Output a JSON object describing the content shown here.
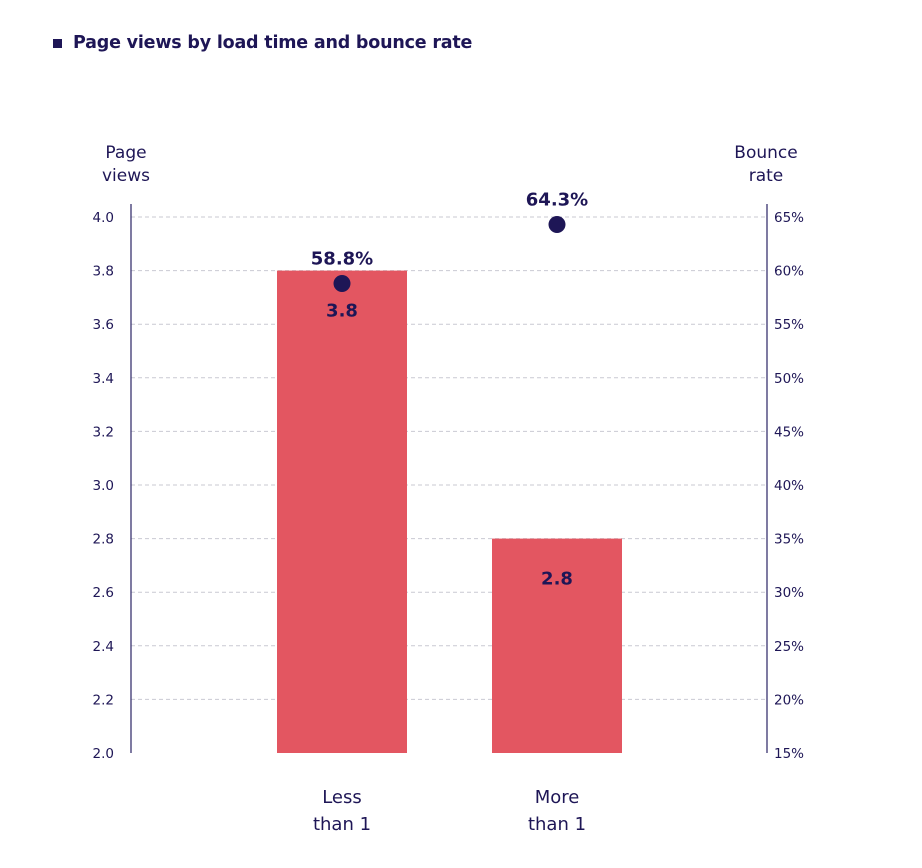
{
  "chart_data": {
    "type": "bar",
    "title": "Page views by load time and bounce rate",
    "categories": [
      [
        "Less",
        "than 1"
      ],
      [
        "More",
        "than 1"
      ]
    ],
    "series": [
      {
        "name": "Page views",
        "kind": "bar",
        "axis": "left",
        "values": [
          3.8,
          2.8
        ],
        "labels": [
          "3.8",
          "2.8"
        ],
        "color": "#e35661"
      },
      {
        "name": "Bounce rate",
        "kind": "point",
        "axis": "right",
        "values": [
          58.8,
          64.3
        ],
        "labels": [
          "58.8%",
          "64.3%"
        ],
        "color": "#1e1656"
      }
    ],
    "left_axis": {
      "label": [
        "Page",
        "views"
      ],
      "range": [
        2.0,
        4.0
      ],
      "ticks": [
        "2.0",
        "2.2",
        "2.4",
        "2.6",
        "2.8",
        "3.0",
        "3.2",
        "3.4",
        "3.6",
        "3.8",
        "4.0"
      ]
    },
    "right_axis": {
      "label": [
        "Bounce",
        "rate"
      ],
      "range": [
        15,
        65
      ],
      "ticks": [
        "15%",
        "20%",
        "25%",
        "30%",
        "35%",
        "40%",
        "45%",
        "50%",
        "55%",
        "60%",
        "65%"
      ]
    },
    "grid": true,
    "colors": {
      "text": "#1e1656",
      "bar": "#e35661",
      "grid": "#c9c9d2",
      "axis": "#3a3470"
    }
  }
}
